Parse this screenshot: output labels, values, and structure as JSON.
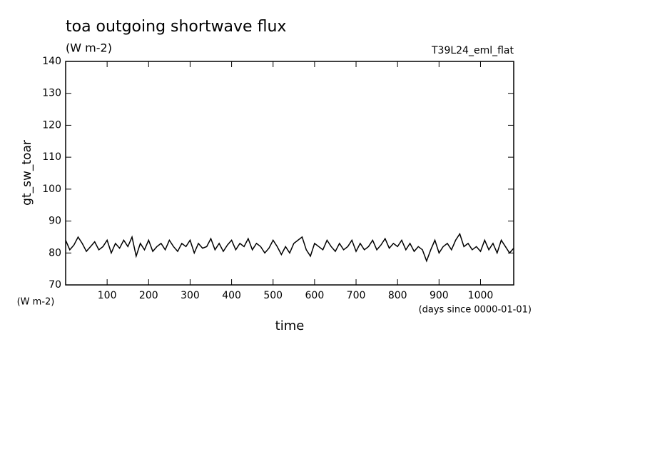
{
  "chart_data": {
    "type": "line",
    "title": "toa outgoing shortwave flux",
    "subtitle": "(W m-2)",
    "annotation": "T39L24_eml_flat",
    "y_label": "gt_sw_toar",
    "y_units": "(W m-2)",
    "x_label": "time",
    "x_units": "(days since 0000-01-01)",
    "xlim": [
      0,
      1080
    ],
    "ylim": [
      70,
      140
    ],
    "xticks": [
      100,
      200,
      300,
      400,
      500,
      600,
      700,
      800,
      900,
      1000
    ],
    "yticks": [
      70,
      80,
      90,
      100,
      110,
      120,
      130,
      140
    ],
    "x": [
      0,
      10,
      20,
      30,
      40,
      50,
      60,
      70,
      80,
      90,
      100,
      110,
      120,
      130,
      140,
      150,
      160,
      170,
      180,
      190,
      200,
      210,
      220,
      230,
      240,
      250,
      260,
      270,
      280,
      290,
      300,
      310,
      320,
      330,
      340,
      350,
      360,
      370,
      380,
      390,
      400,
      410,
      420,
      430,
      440,
      450,
      460,
      470,
      480,
      490,
      500,
      510,
      520,
      530,
      540,
      550,
      560,
      570,
      580,
      590,
      600,
      610,
      620,
      630,
      640,
      650,
      660,
      670,
      680,
      690,
      700,
      710,
      720,
      730,
      740,
      750,
      760,
      770,
      780,
      790,
      800,
      810,
      820,
      830,
      840,
      850,
      860,
      870,
      880,
      890,
      900,
      910,
      920,
      930,
      940,
      950,
      960,
      970,
      980,
      990,
      1000,
      1010,
      1020,
      1030,
      1040,
      1050,
      1060,
      1070,
      1080
    ],
    "series": [
      {
        "color": "#000000",
        "values": [
          84,
          81,
          82.5,
          85,
          83,
          80.5,
          82,
          83.5,
          81,
          82,
          84,
          80,
          83,
          81.5,
          84,
          82,
          85,
          79,
          83,
          81,
          84,
          80.5,
          82,
          83,
          81,
          84,
          82,
          80.5,
          83,
          82,
          84,
          80,
          83,
          81.5,
          82,
          84.5,
          81,
          83,
          80.5,
          82.5,
          84,
          81,
          83,
          82,
          84.5,
          81,
          83,
          82,
          80,
          81.5,
          84,
          82,
          79.5,
          82,
          80,
          83,
          84,
          85,
          81,
          79,
          83,
          82,
          81,
          84,
          82,
          80.5,
          83,
          81,
          82,
          84,
          80.5,
          83,
          81,
          82,
          84,
          81,
          82.5,
          84.5,
          81.5,
          83,
          82,
          84,
          81,
          83,
          80.5,
          82,
          81,
          77.5,
          81,
          84,
          80,
          82,
          83,
          81,
          84,
          86,
          82,
          83,
          81,
          82,
          80.5,
          84,
          81,
          83,
          80,
          84,
          82,
          80,
          81.5
        ]
      }
    ]
  }
}
